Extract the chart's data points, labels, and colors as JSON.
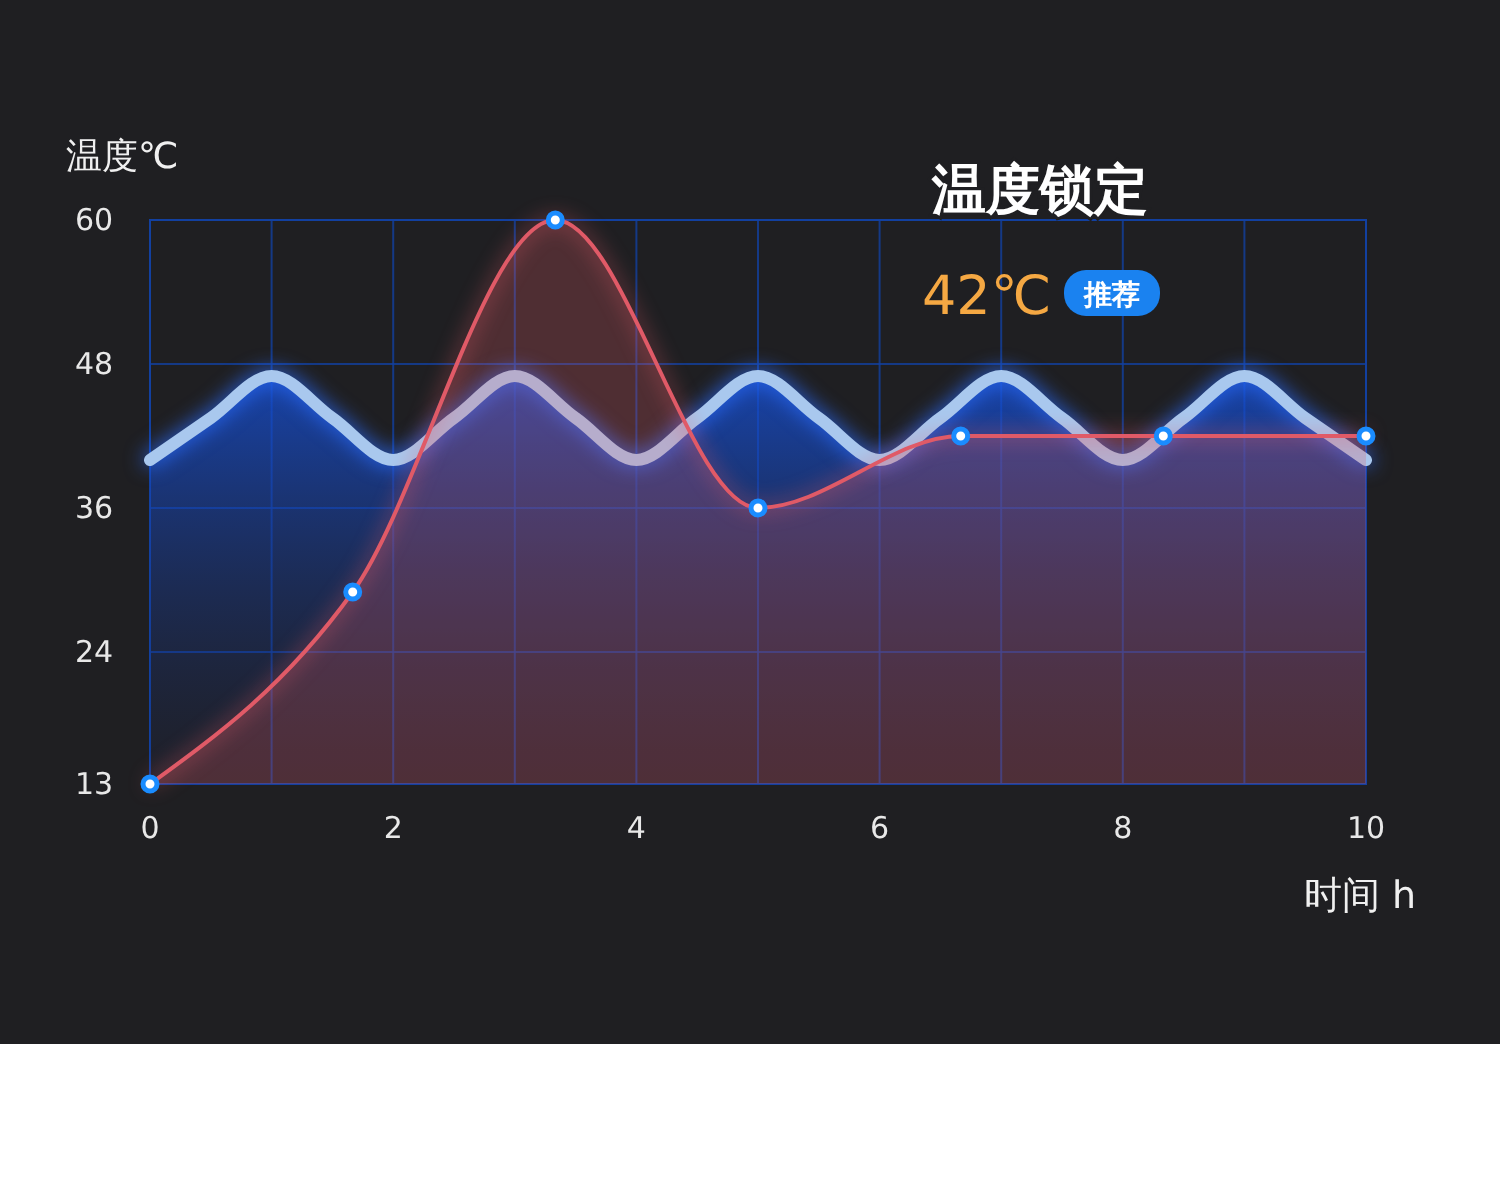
{
  "chart_data": {
    "type": "area",
    "title": "温度锁定",
    "xlabel": "时间 h",
    "ylabel": "温度℃",
    "annotations": [
      "42℃",
      "推荐"
    ],
    "xlim": [
      0,
      10
    ],
    "xticks": [
      0,
      {
        "value": 1,
        "label": null
      },
      2,
      {
        "value": 3,
        "label": null
      },
      4,
      {
        "value": 5,
        "label": null
      },
      6,
      {
        "value": 7,
        "label": null
      },
      8,
      {
        "value": 9,
        "label": null
      },
      10
    ],
    "ylim": [
      13,
      60
    ],
    "yticks": [
      13,
      24,
      36,
      48,
      60
    ],
    "grid": true,
    "marker": "circle",
    "line_style": "solid",
    "series": [
      {
        "color": "#a9c8ee",
        "marker": "none",
        "x": [
          0,
          0.5,
          1,
          1.5,
          2,
          2.5,
          3,
          3.5,
          4,
          4.5,
          5,
          5.5,
          6,
          6.5,
          7,
          7.5,
          8,
          8.5,
          9,
          9.5,
          10
        ],
        "values": [
          40,
          43.5,
          47,
          43.5,
          40,
          43.5,
          47,
          43.5,
          40,
          43.5,
          47,
          43.5,
          40,
          43.5,
          47,
          43.5,
          40,
          43.5,
          47,
          43.5,
          40
        ]
      },
      {
        "color": "#e05a67",
        "x": [
          0,
          1.667,
          3.333,
          5,
          6.667,
          8.333,
          10
        ],
        "values": [
          13,
          29,
          60,
          36,
          42,
          42,
          42
        ]
      }
    ]
  }
}
